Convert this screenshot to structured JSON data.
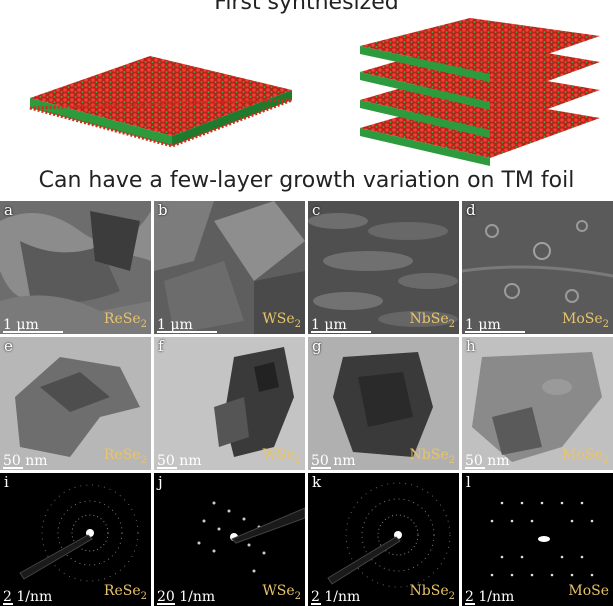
{
  "header": {
    "caption": "First synthesized"
  },
  "subtitle": "Can have a few-layer growth variation on TM foil",
  "panels": [
    {
      "label": "a",
      "scale": "1 μm",
      "material": "ReSe",
      "sub": "2"
    },
    {
      "label": "b",
      "scale": "1 μm",
      "material": "WSe",
      "sub": "2"
    },
    {
      "label": "c",
      "scale": "1 μm",
      "material": "NbSe",
      "sub": "2"
    },
    {
      "label": "d",
      "scale": "1 μm",
      "material": "MoSe",
      "sub": "2"
    },
    {
      "label": "e",
      "scale": "50 nm",
      "material": "ReSe",
      "sub": "2"
    },
    {
      "label": "f",
      "scale": "50 nm",
      "material": "WSe",
      "sub": "2"
    },
    {
      "label": "g",
      "scale": "50 nm",
      "material": "NbSe",
      "sub": "2"
    },
    {
      "label": "h",
      "scale": "50 nm",
      "material": "MoSe",
      "sub": "2"
    },
    {
      "label": "i",
      "scale": "2 1/nm",
      "material": "ReSe",
      "sub": "2"
    },
    {
      "label": "j",
      "scale": "20 1/nm",
      "material": "WSe",
      "sub": "2"
    },
    {
      "label": "k",
      "scale": "2 1/nm",
      "material": "NbSe",
      "sub": "2"
    },
    {
      "label": "l",
      "scale": "2 1/nm",
      "material": "MoSe",
      "sub": ""
    }
  ],
  "colors": {
    "selenium": "#d42a1c",
    "metal": "#2e9a3e",
    "label": "#e8c46a"
  }
}
